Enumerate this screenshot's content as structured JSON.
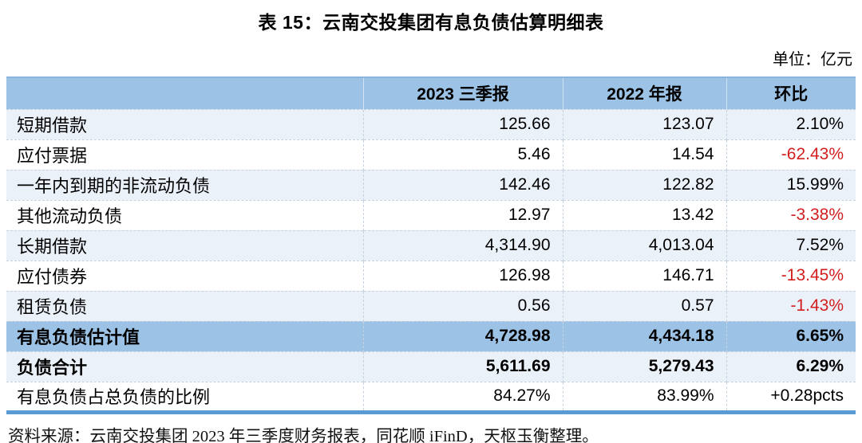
{
  "title": "表 15：云南交投集团有息负债估算明细表",
  "unit_label": "单位：亿元",
  "table": {
    "columns": [
      "",
      "2023 三季报",
      "2022 年报",
      "环比"
    ],
    "rows": [
      {
        "label": "短期借款",
        "v2023": "125.66",
        "v2022": "123.07",
        "mom": "2.10%",
        "bg": "stripe",
        "bold": false,
        "mom_red": false
      },
      {
        "label": "应付票据",
        "v2023": "5.46",
        "v2022": "14.54",
        "mom": "-62.43%",
        "bg": "white",
        "bold": false,
        "mom_red": true
      },
      {
        "label": "一年内到期的非流动负债",
        "v2023": "142.46",
        "v2022": "122.82",
        "mom": "15.99%",
        "bg": "stripe",
        "bold": false,
        "mom_red": false
      },
      {
        "label": "其他流动负债",
        "v2023": "12.97",
        "v2022": "13.42",
        "mom": "-3.38%",
        "bg": "white",
        "bold": false,
        "mom_red": true
      },
      {
        "label": "长期借款",
        "v2023": "4,314.90",
        "v2022": "4,013.04",
        "mom": "7.52%",
        "bg": "stripe",
        "bold": false,
        "mom_red": false
      },
      {
        "label": "应付债券",
        "v2023": "126.98",
        "v2022": "146.71",
        "mom": "-13.45%",
        "bg": "white",
        "bold": false,
        "mom_red": true
      },
      {
        "label": "租赁负债",
        "v2023": "0.56",
        "v2022": "0.57",
        "mom": "-1.43%",
        "bg": "stripe",
        "bold": false,
        "mom_red": true
      },
      {
        "label": "有息负债估计值",
        "v2023": "4,728.98",
        "v2022": "4,434.18",
        "mom": "6.65%",
        "bg": "band",
        "bold": true,
        "mom_red": false
      },
      {
        "label": "负债合计",
        "v2023": "5,611.69",
        "v2022": "5,279.43",
        "mom": "6.29%",
        "bg": "stripe",
        "bold": true,
        "mom_red": false
      },
      {
        "label": "有息负债占总负债的比例",
        "v2023": "84.27%",
        "v2022": "83.99%",
        "mom": "+0.28pcts",
        "bg": "white",
        "bold": false,
        "mom_red": false
      }
    ]
  },
  "footer": {
    "source": "资料来源：云南交投集团 2023 年三季度财务报表，同花顺 iFinD，天枢玉衡整理。"
  },
  "colors": {
    "header_blue": "#9CC2E5",
    "stripe_blue": "#EBF1F9",
    "band_blue": "#9CC2E5",
    "negative_red": "#D21E1E",
    "bottom_border": "#5B9BD5"
  }
}
